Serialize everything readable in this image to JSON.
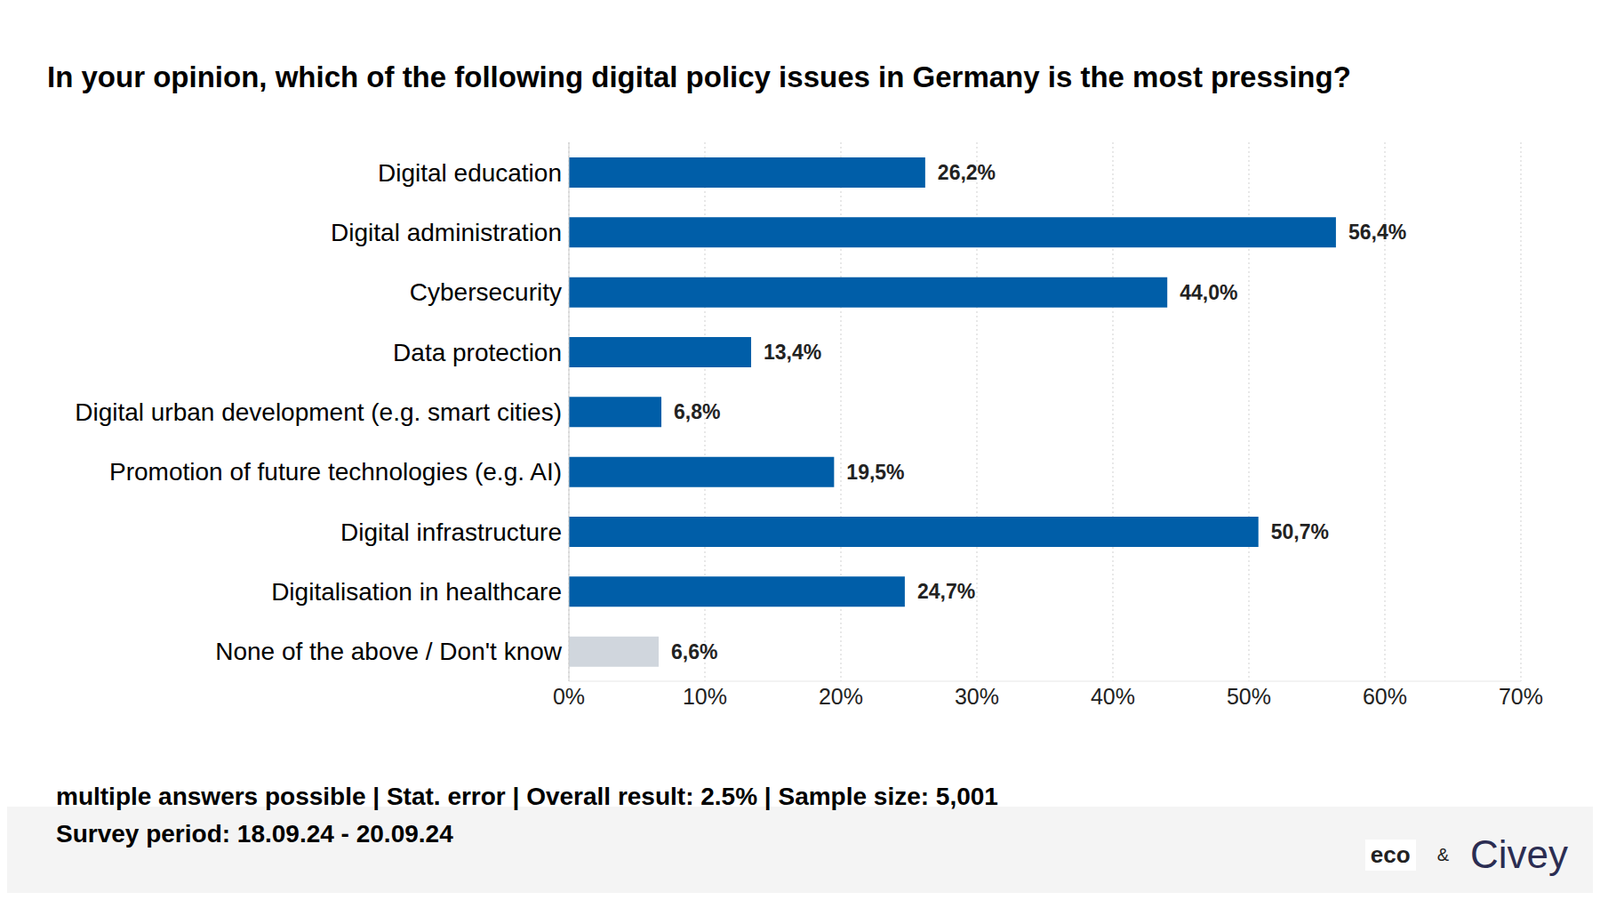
{
  "chart_data": {
    "type": "bar",
    "orientation": "horizontal",
    "title": "In your opinion, which of the following digital policy issues in Germany is the most pressing?",
    "categories": [
      "Digital education",
      "Digital administration",
      "Cybersecurity",
      "Data protection",
      "Digital urban development (e.g. smart cities)",
      "Promotion of future technologies (e.g. AI)",
      "Digital infrastructure",
      "Digitalisation in healthcare",
      "None of the above / Don't know"
    ],
    "values": [
      26.2,
      56.4,
      44.0,
      13.4,
      6.8,
      19.5,
      50.7,
      24.7,
      6.6
    ],
    "value_labels": [
      "26,2%",
      "56,4%",
      "44,0%",
      "13,4%",
      "6,8%",
      "19,5%",
      "50,7%",
      "24,7%",
      "6,6%"
    ],
    "data_labels": true,
    "colors": [
      "#005ea8",
      "#005ea8",
      "#005ea8",
      "#005ea8",
      "#005ea8",
      "#005ea8",
      "#005ea8",
      "#005ea8",
      "#d0d6dd"
    ],
    "xlim": [
      0,
      70
    ],
    "xticks": [
      {
        "value": 0,
        "label": "0%"
      },
      {
        "value": 10,
        "label": "10%"
      },
      {
        "value": 20,
        "label": "20%"
      },
      {
        "value": 30,
        "label": "30%"
      },
      {
        "value": 40,
        "label": "40%"
      },
      {
        "value": 50,
        "label": "50%"
      },
      {
        "value": 60,
        "label": "60%"
      },
      {
        "value": 70,
        "label": "70%"
      }
    ],
    "grid": true,
    "annotations": [
      "multiple answers possible | Stat. error | Overall result: 2.5% | Sample size: 5,001",
      "Survey period: 18.09.24 - 20.09.24"
    ],
    "logos": [
      "eco",
      "&",
      "Civey"
    ]
  }
}
